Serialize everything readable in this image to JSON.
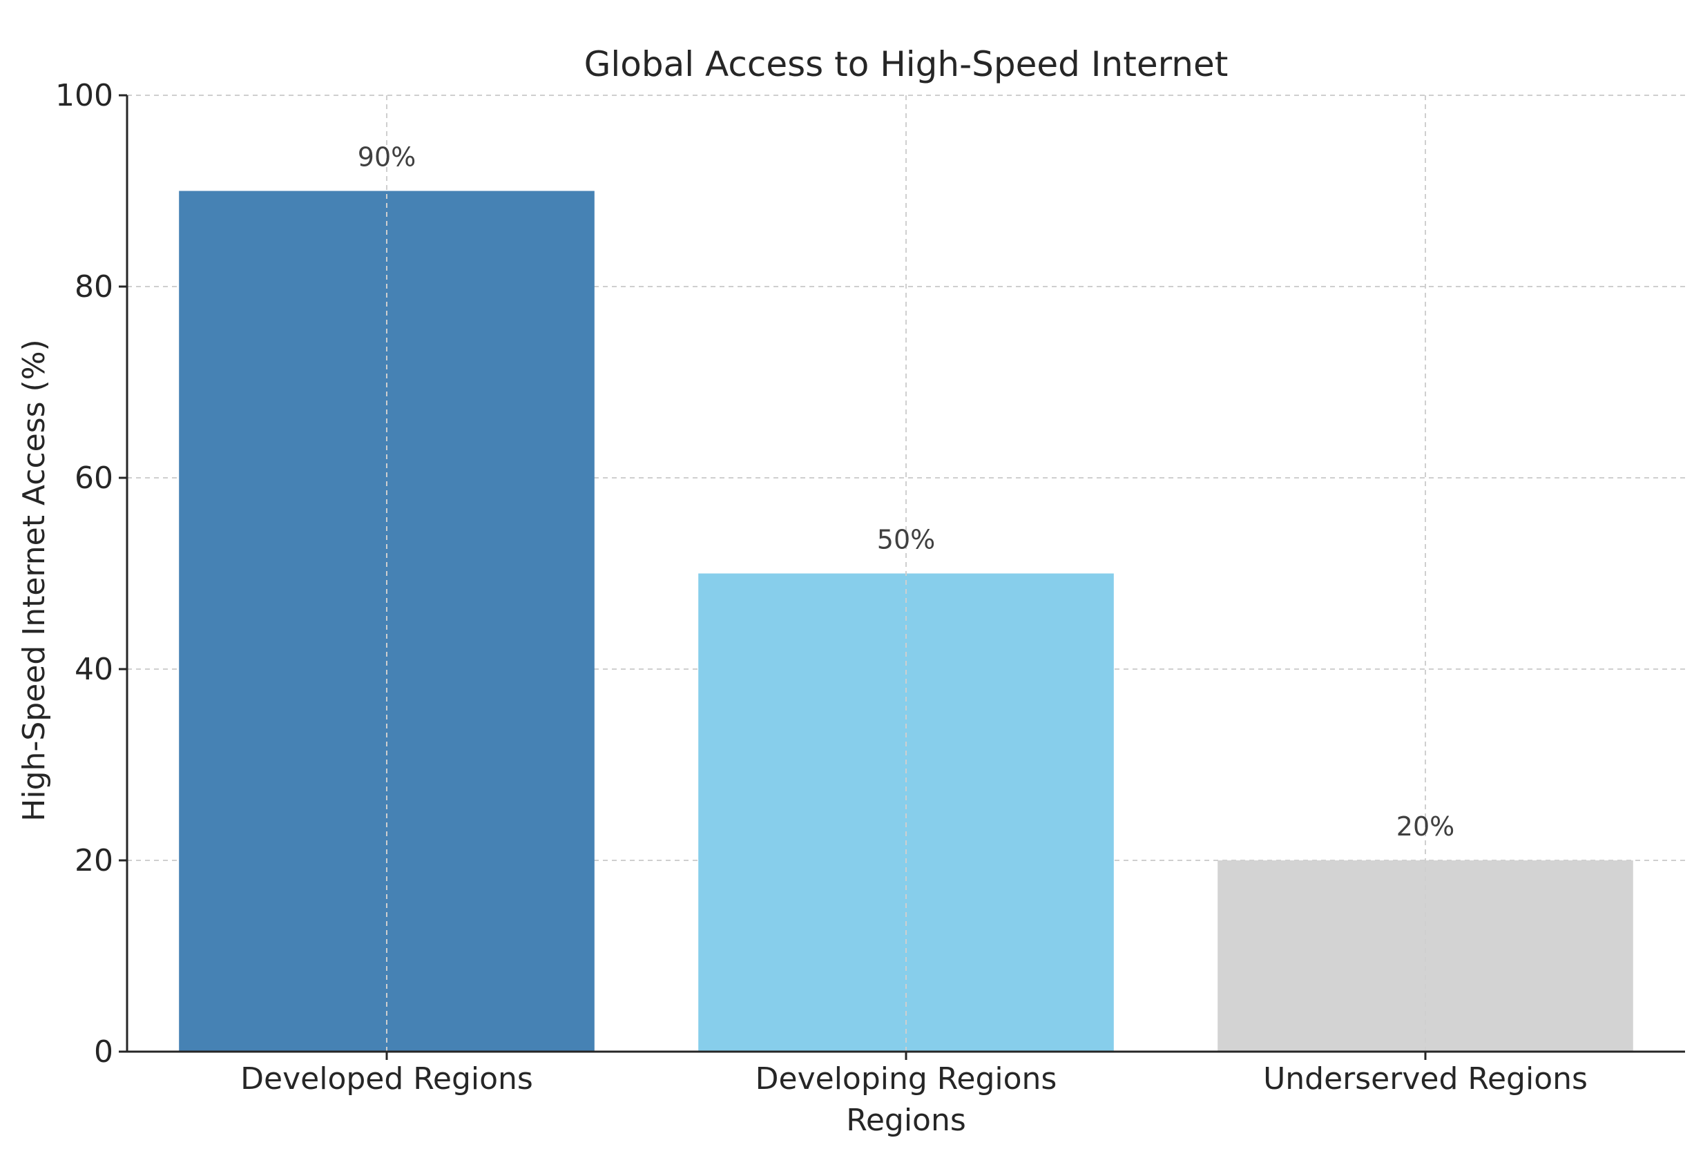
{
  "chart_data": {
    "type": "bar",
    "title": "Global Access to High-Speed Internet",
    "xlabel": "Regions",
    "ylabel": "High-Speed Internet Access (%)",
    "categories": [
      "Developed Regions",
      "Developing Regions",
      "Underserved Regions"
    ],
    "values": [
      90,
      50,
      20
    ],
    "value_labels": [
      "90%",
      "50%",
      "20%"
    ],
    "colors": [
      "#4682b4",
      "#87ceeb",
      "#d3d3d3"
    ],
    "ylim": [
      0,
      100
    ],
    "yticks": [
      0,
      20,
      40,
      60,
      80,
      100
    ],
    "grid": true
  }
}
